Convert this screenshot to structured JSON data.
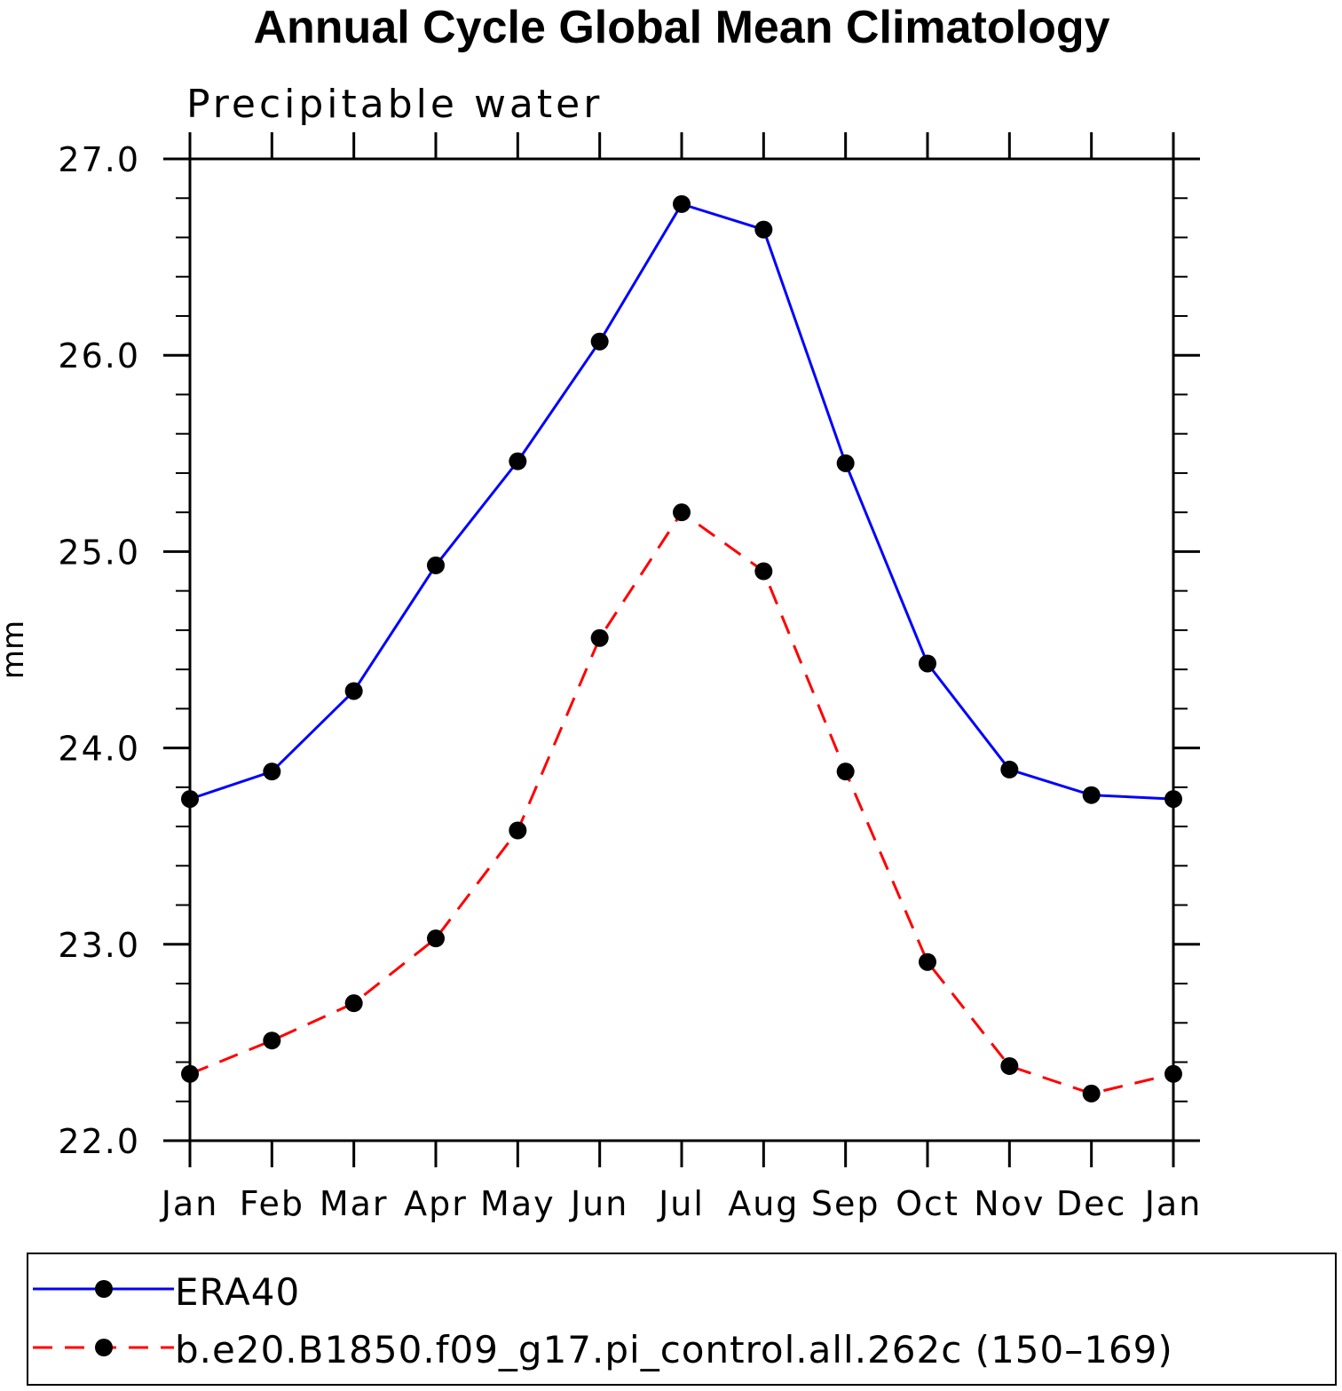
{
  "chart_data": {
    "type": "line",
    "title": "Annual Cycle Global Mean Climatology",
    "subtitle": "Precipitable water",
    "xlabel": "",
    "ylabel": "mm",
    "ylim": [
      22.0,
      27.0
    ],
    "yticks": [
      "22.0",
      "23.0",
      "24.0",
      "25.0",
      "26.0",
      "27.0"
    ],
    "categories": [
      "Jan",
      "Feb",
      "Mar",
      "Apr",
      "May",
      "Jun",
      "Jul",
      "Aug",
      "Sep",
      "Oct",
      "Nov",
      "Dec",
      "Jan"
    ],
    "series": [
      {
        "name": "ERA40",
        "color": "#0000ff",
        "dash": "solid",
        "values": [
          23.74,
          23.88,
          24.29,
          24.93,
          25.46,
          26.07,
          26.77,
          26.64,
          25.45,
          24.43,
          23.89,
          23.76,
          23.74
        ]
      },
      {
        "name": "b.e20.B1850.f09_g17.pi_control.all.262c (150–169)",
        "color": "#ff0000",
        "dash": "dashed",
        "values": [
          22.34,
          22.51,
          22.7,
          23.03,
          23.58,
          24.56,
          25.2,
          24.9,
          23.88,
          22.91,
          22.38,
          22.24,
          22.34
        ]
      }
    ],
    "legend_position": "bottom"
  }
}
